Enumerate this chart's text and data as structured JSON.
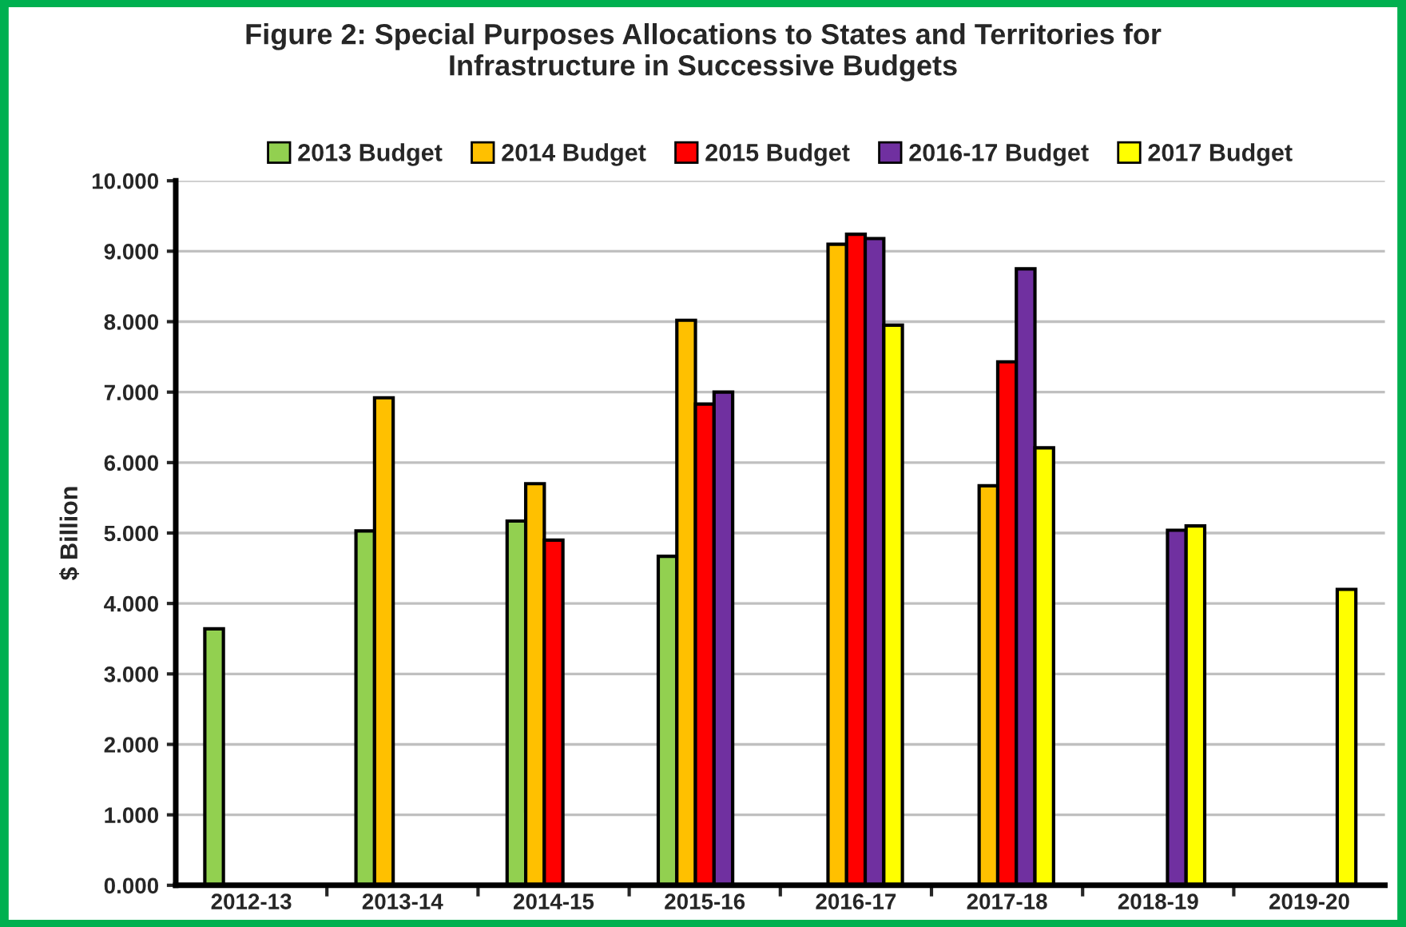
{
  "chart_data": {
    "type": "bar",
    "title": "Figure 2: Special Purposes Allocations to States and Territories for\nInfrastructure in Successive Budgets",
    "ylabel": "$ Billion",
    "categories": [
      "2012-13",
      "2013-14",
      "2014-15",
      "2015-16",
      "2016-17",
      "2017-18",
      "2018-19",
      "2019-20"
    ],
    "series": [
      {
        "name": "2013 Budget",
        "color": "#92d050",
        "values": [
          3.64,
          5.03,
          5.17,
          4.67,
          null,
          null,
          null,
          null
        ]
      },
      {
        "name": "2014 Budget",
        "color": "#ffc000",
        "values": [
          null,
          6.92,
          5.7,
          8.02,
          9.1,
          5.67,
          null,
          null
        ]
      },
      {
        "name": "2015 Budget",
        "color": "#ff0000",
        "values": [
          null,
          null,
          4.9,
          6.83,
          9.24,
          7.43,
          null,
          null
        ]
      },
      {
        "name": "2016-17 Budget",
        "color": "#7030a0",
        "values": [
          null,
          null,
          null,
          7.0,
          9.18,
          8.75,
          5.04,
          null
        ]
      },
      {
        "name": "2017 Budget",
        "color": "#ffff00",
        "values": [
          null,
          null,
          null,
          null,
          7.95,
          6.21,
          5.1,
          4.2
        ]
      }
    ],
    "ylim": [
      0,
      10
    ],
    "yticks": [
      {
        "value": 0,
        "label": "0.000"
      },
      {
        "value": 1,
        "label": "1.000"
      },
      {
        "value": 2,
        "label": "2.000"
      },
      {
        "value": 3,
        "label": "3.000"
      },
      {
        "value": 4,
        "label": "4.000"
      },
      {
        "value": 5,
        "label": "5.000"
      },
      {
        "value": 6,
        "label": "6.000"
      },
      {
        "value": 7,
        "label": "7.000"
      },
      {
        "value": 8,
        "label": "8.000"
      },
      {
        "value": 9,
        "label": "9.000"
      },
      {
        "value": 10,
        "label": "10.000"
      }
    ],
    "grid": "y",
    "legend": "top"
  }
}
